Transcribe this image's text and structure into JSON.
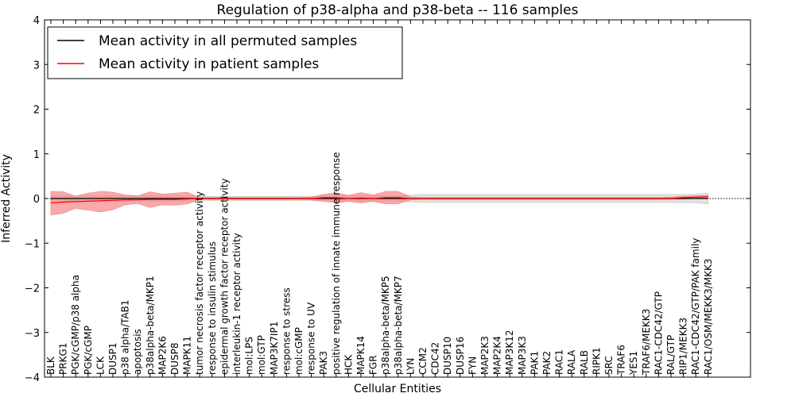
{
  "chart_data": {
    "type": "line",
    "title": "Regulation of p38-alpha and p38-beta -- 116 samples",
    "xlabel": "Cellular Entities",
    "ylabel": "Inferred Activity",
    "ylim": [
      -4,
      4
    ],
    "yticks": [
      4,
      3,
      2,
      1,
      0,
      -1,
      -2,
      -3,
      -4
    ],
    "ytick_labels": [
      "4",
      "3",
      "2",
      "1",
      "0",
      "−1",
      "−2",
      "−3",
      "−4"
    ],
    "legend_position": "top-left",
    "categories": [
      "BLK",
      "PRKG1",
      "PGK/cGMP/p38 alpha",
      "PGK/cGMP",
      "LCK",
      "DUSP1",
      "p38 alpha/TAB1",
      "apoptosis",
      "p38alpha-beta/MKP1",
      "MAP2K6",
      "DUSP8",
      "MAPK11",
      "tumor necrosis factor receptor activity",
      "response to insulin stimulus",
      "epidermal growth factor receptor activity",
      "interleukin-1 receptor activity",
      "mol:LPS",
      "mol:GTP",
      "MAP3K7IP1",
      "response to stress",
      "mol:cGMP",
      "response to UV",
      "PAK3",
      "positive regulation of innate immune response",
      "HCK",
      "MAPK14",
      "FGR",
      "p38alpha-beta/MKP5",
      "p38alpha-beta/MKP7",
      "LYN",
      "CCM2",
      "CDC42",
      "DUSP10",
      "DUSP16",
      "FYN",
      "MAP2K3",
      "MAP2K4",
      "MAP3K12",
      "MAP3K3",
      "PAK1",
      "PAK2",
      "RAC1",
      "RALA",
      "RALB",
      "RIPK1",
      "SRC",
      "TRAF6",
      "YES1",
      "TRAF6/MEKK3",
      "RAC1-CDC42/GTP",
      "RAL/GTP",
      "RIP1/MEKK3",
      "RAC1-CDC42/GTP/PAK family",
      "RAC1/OSM/MEKK3/MKK3"
    ],
    "series": [
      {
        "name": "Mean activity in all permuted samples",
        "color": "#000000",
        "band_color": "#c8c8c8",
        "values": [
          0.0,
          0.0,
          0.0,
          0.0,
          0.0,
          0.0,
          0.0,
          0.0,
          0.0,
          0.0,
          0.0,
          0.0,
          0.0,
          0.0,
          0.0,
          0.0,
          0.0,
          0.0,
          0.0,
          0.0,
          0.0,
          0.0,
          0.0,
          0.0,
          0.0,
          0.0,
          0.0,
          0.0,
          0.0,
          0.0,
          0.0,
          0.0,
          0.0,
          0.0,
          0.0,
          0.0,
          0.0,
          0.0,
          0.0,
          0.0,
          0.0,
          0.0,
          0.0,
          0.0,
          0.0,
          0.0,
          0.0,
          0.0,
          0.0,
          0.0,
          0.0,
          0.0,
          0.0,
          0.0
        ],
        "upper": [
          0.06,
          0.06,
          0.06,
          0.06,
          0.06,
          0.06,
          0.06,
          0.06,
          0.06,
          0.06,
          0.06,
          0.06,
          0.05,
          0.05,
          0.05,
          0.05,
          0.05,
          0.05,
          0.05,
          0.05,
          0.05,
          0.05,
          0.06,
          0.06,
          0.06,
          0.06,
          0.06,
          0.06,
          0.06,
          0.08,
          0.09,
          0.09,
          0.09,
          0.09,
          0.09,
          0.09,
          0.09,
          0.09,
          0.09,
          0.09,
          0.09,
          0.09,
          0.09,
          0.09,
          0.09,
          0.09,
          0.09,
          0.09,
          0.09,
          0.09,
          0.09,
          0.09,
          0.1,
          0.12
        ],
        "lower": [
          -0.06,
          -0.06,
          -0.06,
          -0.06,
          -0.06,
          -0.06,
          -0.06,
          -0.06,
          -0.06,
          -0.06,
          -0.06,
          -0.06,
          -0.05,
          -0.05,
          -0.05,
          -0.05,
          -0.05,
          -0.05,
          -0.05,
          -0.05,
          -0.05,
          -0.05,
          -0.06,
          -0.06,
          -0.06,
          -0.06,
          -0.06,
          -0.06,
          -0.06,
          -0.08,
          -0.09,
          -0.09,
          -0.09,
          -0.09,
          -0.09,
          -0.09,
          -0.09,
          -0.09,
          -0.09,
          -0.09,
          -0.09,
          -0.09,
          -0.09,
          -0.09,
          -0.09,
          -0.09,
          -0.09,
          -0.09,
          -0.09,
          -0.09,
          -0.09,
          -0.09,
          -0.1,
          -0.12
        ]
      },
      {
        "name": "Mean activity in patient samples",
        "color": "#ff0000",
        "band_color": "#f47c7c",
        "values": [
          -0.1,
          -0.08,
          -0.07,
          -0.06,
          -0.05,
          -0.04,
          -0.03,
          -0.03,
          -0.02,
          -0.02,
          -0.02,
          -0.01,
          0.0,
          0.0,
          0.0,
          0.0,
          0.0,
          0.0,
          0.0,
          0.0,
          0.0,
          0.0,
          0.02,
          0.02,
          0.0,
          0.01,
          0.0,
          0.02,
          0.02,
          0.0,
          0.0,
          0.0,
          0.0,
          0.0,
          0.0,
          0.0,
          0.0,
          0.0,
          0.0,
          0.0,
          0.0,
          0.0,
          0.0,
          0.0,
          0.0,
          0.0,
          0.0,
          0.0,
          0.0,
          0.0,
          0.0,
          0.02,
          0.03,
          0.04
        ],
        "upper": [
          0.16,
          0.15,
          0.05,
          0.12,
          0.16,
          0.14,
          0.08,
          0.06,
          0.15,
          0.1,
          0.12,
          0.14,
          0.02,
          0.02,
          0.02,
          0.02,
          0.02,
          0.02,
          0.02,
          0.02,
          0.02,
          0.03,
          0.09,
          0.13,
          0.07,
          0.13,
          0.08,
          0.16,
          0.16,
          0.03,
          0.02,
          0.02,
          0.02,
          0.02,
          0.02,
          0.02,
          0.02,
          0.02,
          0.02,
          0.02,
          0.02,
          0.02,
          0.02,
          0.02,
          0.02,
          0.02,
          0.02,
          0.02,
          0.02,
          0.02,
          0.03,
          0.05,
          0.06,
          0.07
        ],
        "lower": [
          -0.37,
          -0.33,
          -0.22,
          -0.26,
          -0.3,
          -0.25,
          -0.14,
          -0.11,
          -0.2,
          -0.14,
          -0.15,
          -0.12,
          -0.02,
          -0.02,
          -0.02,
          -0.02,
          -0.02,
          -0.02,
          -0.02,
          -0.02,
          -0.02,
          -0.03,
          -0.06,
          -0.1,
          -0.06,
          -0.1,
          -0.06,
          -0.12,
          -0.12,
          -0.03,
          -0.02,
          -0.02,
          -0.02,
          -0.02,
          -0.02,
          -0.02,
          -0.02,
          -0.02,
          -0.02,
          -0.02,
          -0.02,
          -0.02,
          -0.02,
          -0.02,
          -0.02,
          -0.02,
          -0.02,
          -0.02,
          -0.02,
          -0.02,
          -0.02,
          -0.01,
          0.0,
          0.01
        ]
      }
    ]
  }
}
